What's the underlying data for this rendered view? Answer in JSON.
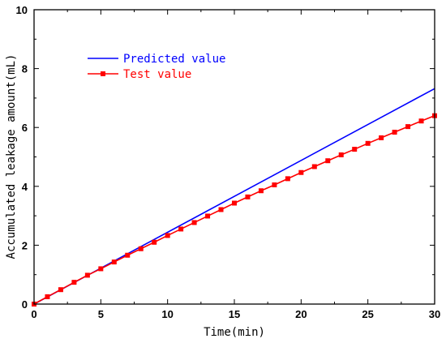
{
  "chart_data": {
    "type": "line",
    "xlabel": "Time(min)",
    "ylabel": "Accumulated leakage amount(mL)",
    "xlim": [
      0,
      30
    ],
    "ylim": [
      0,
      10
    ],
    "xticks": [
      0,
      5,
      10,
      15,
      20,
      25,
      30
    ],
    "yticks": [
      0,
      2,
      4,
      6,
      8,
      10
    ],
    "grid": false,
    "legend_position": "top-left",
    "series": [
      {
        "name": "Predicted value",
        "color": "#0000ff",
        "marker": "none",
        "x": [
          0,
          30
        ],
        "y": [
          0,
          7.32
        ]
      },
      {
        "name": "Test value",
        "color": "#ff0000",
        "marker": "square",
        "x": [
          0,
          1,
          2,
          3,
          4,
          5,
          6,
          7,
          8,
          9,
          10,
          11,
          12,
          13,
          14,
          15,
          16,
          17,
          18,
          19,
          20,
          21,
          22,
          23,
          24,
          25,
          26,
          27,
          28,
          29,
          30
        ],
        "y": [
          0,
          0.25,
          0.49,
          0.74,
          0.98,
          1.2,
          1.43,
          1.66,
          1.88,
          2.1,
          2.33,
          2.55,
          2.77,
          2.99,
          3.21,
          3.43,
          3.64,
          3.85,
          4.05,
          4.26,
          4.47,
          4.67,
          4.87,
          5.07,
          5.26,
          5.46,
          5.65,
          5.84,
          6.03,
          6.22,
          6.4
        ]
      }
    ]
  }
}
